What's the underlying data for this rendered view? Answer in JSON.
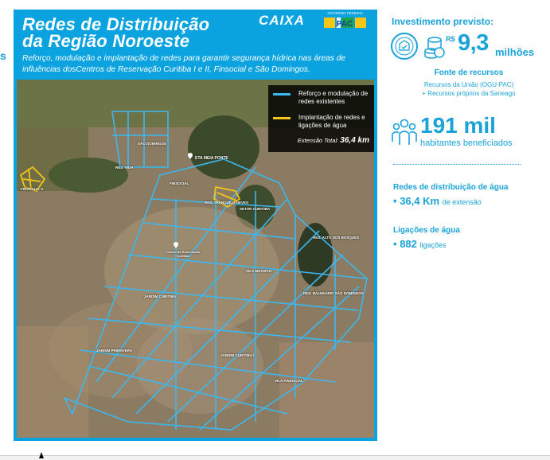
{
  "colors": {
    "brand_blue": "#0aa3e0",
    "accent_text": "#1aa3d9",
    "network_blue": "#3cb8f0",
    "new_network_yellow": "#f5c518"
  },
  "left_edge_text": "s",
  "panel": {
    "title_line1": "Redes de Distribuição",
    "title_line2": "da Região Noroeste",
    "subtitle": "Reforço, modulação e implantação de redes para garantir segurança hídrica nas áreas de influências dosCentros de Reservação Curitiba I e II, Finsocial e São Domingos.",
    "logo_caixa": "CAIXA",
    "logo_gov_top": "GOVERNO FEDERAL",
    "logo_gov_word": "PAC"
  },
  "legend": {
    "items": [
      {
        "label": "Reforço e modulação de redes existentes",
        "color": "#3cb8f0"
      },
      {
        "label": "Implantação de redes e ligações de água",
        "color": "#f5c518"
      }
    ],
    "extension_label": "Extensão Total:",
    "extension_value": "36,4 km"
  },
  "map_labels": [
    {
      "text": "ETA MEIA PONTE",
      "icon": "pin-icon"
    },
    {
      "text": "SÃO DOMINGOS"
    },
    {
      "text": "RES. VIDA"
    },
    {
      "text": "FINSOCIAL II"
    },
    {
      "text": "FINSOCIAL"
    },
    {
      "text": "RES. TRANQUILO NEVES"
    },
    {
      "text": "SETOR CURITIBA"
    },
    {
      "text": "RES. ALTO DOS BOSQUES"
    },
    {
      "text": "VILA MUTIRÃO"
    },
    {
      "text": "RES. BALNEÁRIO SÃO DOMINGOS"
    },
    {
      "text": "JARDIM CURITIBA"
    },
    {
      "text": "JARDIM PRIMAVERA"
    },
    {
      "text": "JARDIM CURITIBA I"
    },
    {
      "text": "VILA FINSOCIAL"
    },
    {
      "text": "Centro de Reservação Curitiba",
      "icon": "pin-icon"
    }
  ],
  "investment": {
    "title": "Investimento previsto:",
    "currency": "R$",
    "amount": "9,3",
    "unit": "milhões",
    "seal_icon": "seal-icon",
    "coins_icon": "coins-icon"
  },
  "funding": {
    "title": "Fonte de recursos",
    "line1": "Recursos da União (OGU-PAC)",
    "line2": "+ Recursos próprios da Saneago"
  },
  "population": {
    "value": "191 mil",
    "label": "habitantes beneficiados",
    "icon": "people-icon"
  },
  "networks": {
    "title": "Redes de distribuição de água",
    "bullet": "•",
    "value": "36,4 Km",
    "unit": "de extensão"
  },
  "connections": {
    "title": "Ligações de água",
    "bullet": "•",
    "value": "882",
    "unit": "ligações"
  }
}
